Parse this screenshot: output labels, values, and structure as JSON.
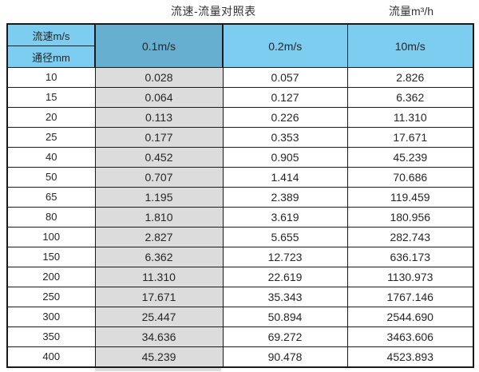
{
  "titles": {
    "left": "流速-流量对照表",
    "right": "流量m³/h"
  },
  "colors": {
    "header_blue": "#7ccdf0",
    "highlight_blue": "#67afd0",
    "gray_column": "#dcdcdc",
    "border": "#1a1a1a",
    "text": "#262626"
  },
  "table": {
    "corner_top_label": "流速m/s",
    "corner_bottom_label": "通径mm",
    "velocity_columns": [
      "0.1m/s",
      "0.2m/s",
      "10m/s"
    ],
    "rows": [
      {
        "diameter": "10",
        "values": [
          "0.028",
          "0.057",
          "2.826"
        ]
      },
      {
        "diameter": "15",
        "values": [
          "0.064",
          "0.127",
          "6.362"
        ]
      },
      {
        "diameter": "20",
        "values": [
          "0.113",
          "0.226",
          "11.310"
        ]
      },
      {
        "diameter": "25",
        "values": [
          "0.177",
          "0.353",
          "17.671"
        ]
      },
      {
        "diameter": "40",
        "values": [
          "0.452",
          "0.905",
          "45.239"
        ]
      },
      {
        "diameter": "50",
        "values": [
          "0.707",
          "1.414",
          "70.686"
        ]
      },
      {
        "diameter": "65",
        "values": [
          "1.195",
          "2.389",
          "119.459"
        ]
      },
      {
        "diameter": "80",
        "values": [
          "1.810",
          "3.619",
          "180.956"
        ]
      },
      {
        "diameter": "100",
        "values": [
          "2.827",
          "5.655",
          "282.743"
        ]
      },
      {
        "diameter": "150",
        "values": [
          "6.362",
          "12.723",
          "636.173"
        ]
      },
      {
        "diameter": "200",
        "values": [
          "11.310",
          "22.619",
          "1130.973"
        ]
      },
      {
        "diameter": "250",
        "values": [
          "17.671",
          "35.343",
          "1767.146"
        ]
      },
      {
        "diameter": "300",
        "values": [
          "25.447",
          "50.894",
          "2544.690"
        ]
      },
      {
        "diameter": "350",
        "values": [
          "34.636",
          "69.272",
          "3463.606"
        ]
      },
      {
        "diameter": "400",
        "values": [
          "45.239",
          "90.478",
          "4523.893"
        ]
      }
    ]
  }
}
